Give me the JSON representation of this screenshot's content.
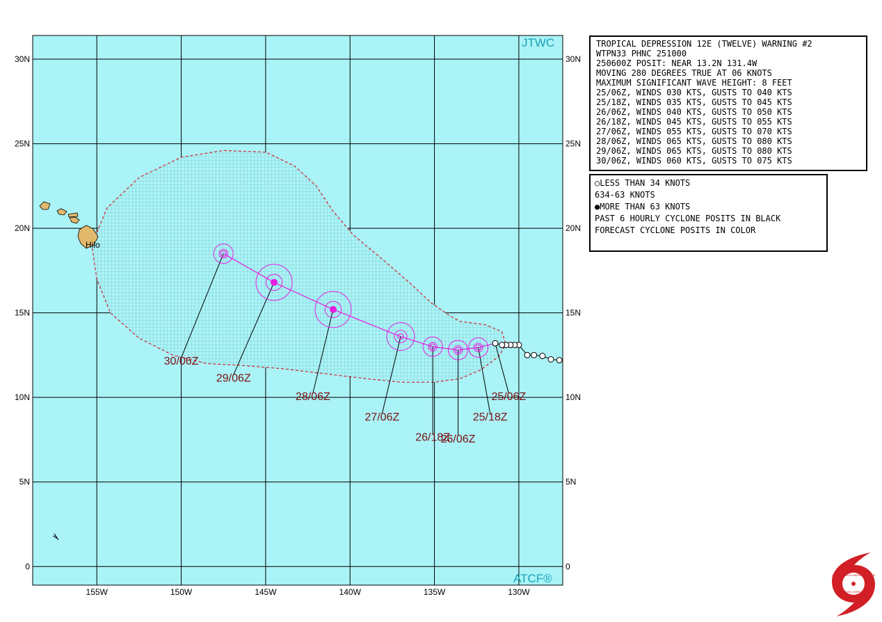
{
  "map": {
    "agency": "JTWC",
    "software": "ATCF®",
    "lon_min": -158.8,
    "lon_max": -127.4,
    "lat_min": -1.1,
    "lat_max": 31.4,
    "lon_ticks": [
      {
        "lon": -155,
        "label": "155W"
      },
      {
        "lon": -150,
        "label": "150W"
      },
      {
        "lon": -145,
        "label": "145W"
      },
      {
        "lon": -140,
        "label": "140W"
      },
      {
        "lon": -135,
        "label": "135W"
      },
      {
        "lon": -130,
        "label": "130W"
      }
    ],
    "lat_ticks": [
      {
        "lat": 30,
        "label": "30N"
      },
      {
        "lat": 25,
        "label": "25N"
      },
      {
        "lat": 20,
        "label": "20N"
      },
      {
        "lat": 15,
        "label": "15N"
      },
      {
        "lat": 10,
        "label": "10N"
      },
      {
        "lat": 5,
        "label": "5N"
      },
      {
        "lat": 0,
        "label": "0"
      }
    ],
    "place_label": "Hilo",
    "colors": {
      "ocean": "#aaf3f7",
      "grid": "#000000",
      "land": "#e2b86c",
      "track": "#e51ee0",
      "swath_outline": "#d2232a",
      "swath_fill": "#8fd5d9",
      "dtg_text": "#7a1010",
      "brand_text": "#1aa3b8"
    },
    "past_track": [
      {
        "lat": 12.2,
        "lon": -127.6
      },
      {
        "lat": 12.25,
        "lon": -128.1
      },
      {
        "lat": 12.45,
        "lon": -128.6
      },
      {
        "lat": 12.5,
        "lon": -129.1
      },
      {
        "lat": 12.5,
        "lon": -129.5
      },
      {
        "lat": 13.1,
        "lon": -130.0
      },
      {
        "lat": 13.1,
        "lon": -130.25
      },
      {
        "lat": 13.1,
        "lon": -130.5
      },
      {
        "lat": 13.1,
        "lon": -130.75
      },
      {
        "lat": 13.1,
        "lon": -131.0
      },
      {
        "lat": 13.2,
        "lon": -131.4
      }
    ],
    "forecast_track": [
      {
        "dtg": "25/06Z",
        "lat": 13.2,
        "lon": -131.4,
        "intensity": "lt34",
        "label_lat": 10.0,
        "label_lon": -130.6
      },
      {
        "dtg": "25/18Z",
        "lat": 12.95,
        "lon": -132.4,
        "intensity": "34-63",
        "label_lat": 8.8,
        "label_lon": -131.7
      },
      {
        "dtg": "26/06Z",
        "lat": 12.8,
        "lon": -133.6,
        "intensity": "34-63",
        "label_lat": 7.5,
        "label_lon": -133.6
      },
      {
        "dtg": "26/18Z",
        "lat": 13.0,
        "lon": -135.1,
        "intensity": "34-63",
        "label_lat": 7.6,
        "label_lon": -135.1
      },
      {
        "dtg": "27/06Z",
        "lat": 13.6,
        "lon": -137.0,
        "intensity": "34-63",
        "label_lat": 8.8,
        "label_lon": -138.1
      },
      {
        "dtg": "28/06Z",
        "lat": 15.2,
        "lon": -141.0,
        "intensity": "gt63",
        "label_lat": 10.0,
        "label_lon": -142.2
      },
      {
        "dtg": "29/06Z",
        "lat": 16.8,
        "lon": -144.5,
        "intensity": "gt63",
        "label_lat": 11.1,
        "label_lon": -146.9
      },
      {
        "dtg": "30/06Z",
        "lat": 18.5,
        "lon": -147.5,
        "intensity": "34-63",
        "label_lat": 12.1,
        "label_lon": -150.0
      }
    ]
  },
  "warning": {
    "lines": [
      "TROPICAL DEPRESSION 12E (TWELVE) WARNING #2",
      "WTPN33 PHNC 251000",
      "250600Z POSIT: NEAR 13.2N 131.4W",
      "MOVING 280 DEGREES TRUE AT 06 KNOTS",
      "MAXIMUM SIGNIFICANT WAVE HEIGHT: 8 FEET",
      "25/06Z, WINDS 030 KTS, GUSTS TO 040 KTS",
      "25/18Z, WINDS 035 KTS, GUSTS TO 045 KTS",
      "26/06Z, WINDS 040 KTS, GUSTS TO 050 KTS",
      "26/18Z, WINDS 045 KTS, GUSTS TO 055 KTS",
      "27/06Z, WINDS 055 KTS, GUSTS TO 070 KTS",
      "28/06Z, WINDS 065 KTS, GUSTS TO 080 KTS",
      "29/06Z, WINDS 065 KTS, GUSTS TO 080 KTS",
      "30/06Z, WINDS 060 KTS, GUSTS TO 075 KTS"
    ]
  },
  "legend": {
    "lt34": "LESS THAN 34 KNOTS",
    "mid": "34-63 KNOTS",
    "gt63": "MORE THAN 63 KNOTS",
    "past": "PAST 6 HOURLY CYCLONE POSITS IN BLACK",
    "forecast": "FORECAST CYCLONE POSITS IN COLOR"
  },
  "logo": {
    "text_top": "JOINT TYPHOON WARNING CENTER",
    "text_bottom": "PEARL HARBOR",
    "text_state": "HAWAII"
  }
}
